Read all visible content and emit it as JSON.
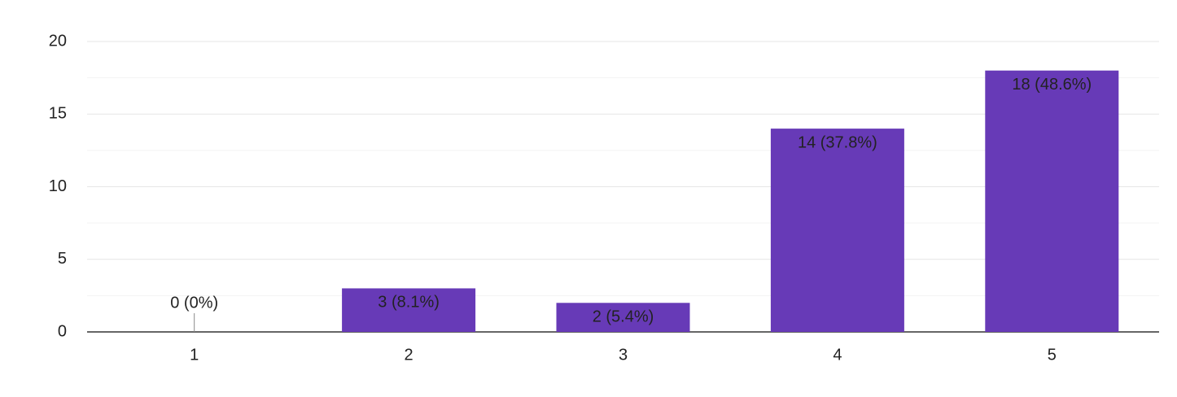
{
  "chart_data": {
    "type": "bar",
    "categories": [
      "1",
      "2",
      "3",
      "4",
      "5"
    ],
    "values": [
      0,
      3,
      2,
      14,
      18
    ],
    "value_labels": [
      "0 (0%)",
      "3 (8.1%)",
      "2 (5.4%)",
      "14 (37.8%)",
      "18 (48.6%)"
    ],
    "color": "#673ab7",
    "ylim": [
      0,
      20
    ],
    "yticks": [
      0,
      5,
      10,
      15,
      20
    ],
    "minor_yticks": [
      2.5,
      7.5,
      12.5,
      17.5
    ],
    "grid": true
  }
}
